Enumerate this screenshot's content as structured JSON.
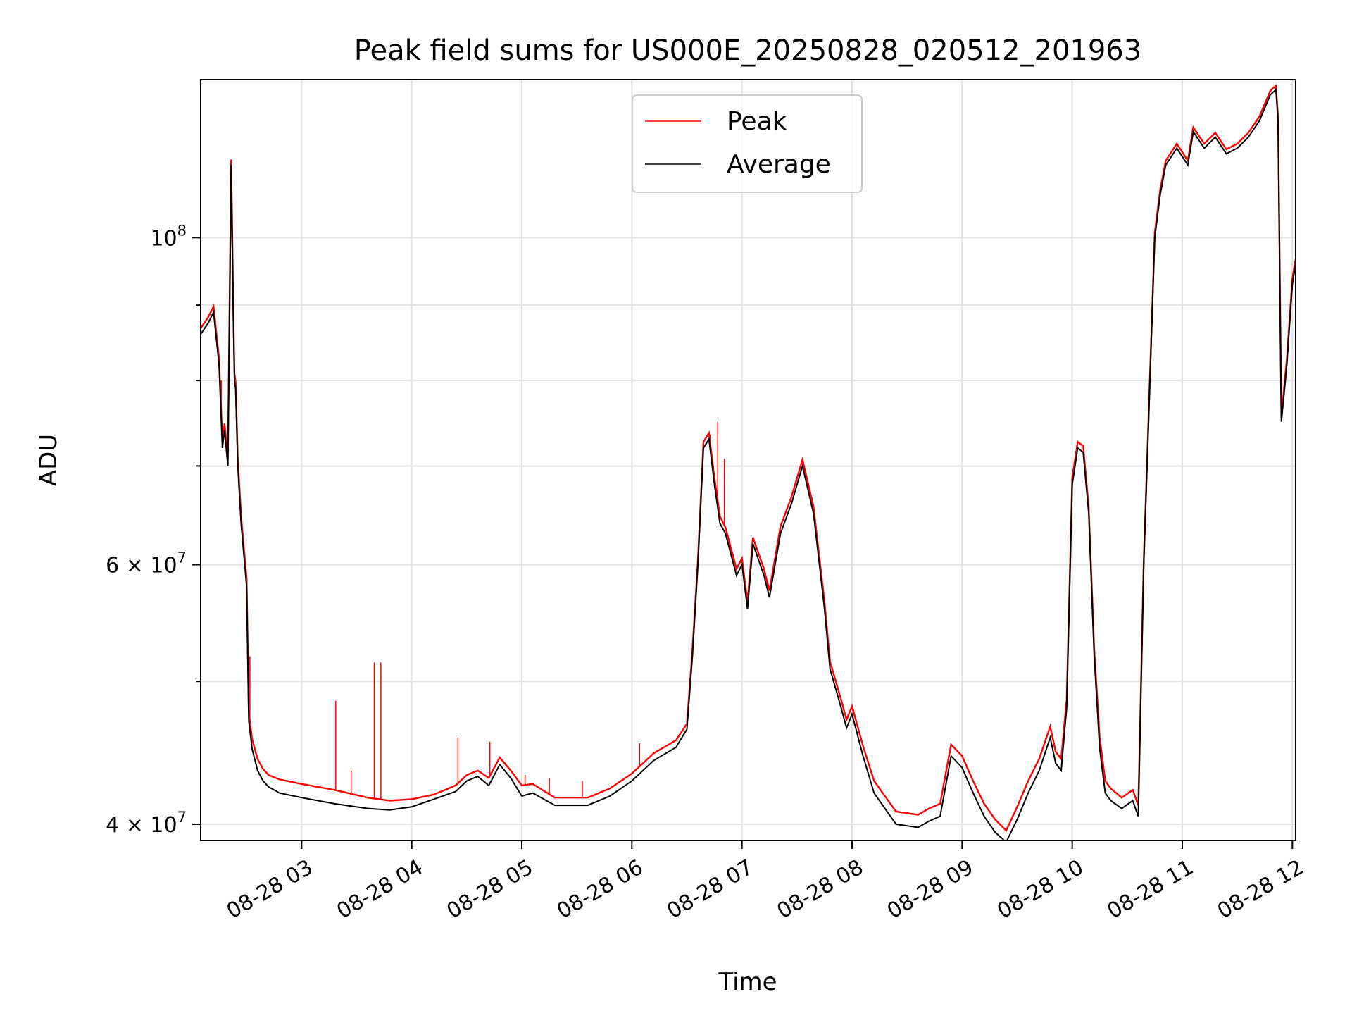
{
  "chart_data": {
    "type": "line",
    "title": "Peak field sums for US000E_20250828_020512_201963",
    "xlabel": "Time",
    "ylabel": "ADU",
    "yscale": "log",
    "ylim": [
      39000000,
      128000000
    ],
    "xlim": [
      2.083,
      12.03
    ],
    "x_ticks": [
      {
        "value": 3,
        "label": "08-28 03"
      },
      {
        "value": 4,
        "label": "08-28 04"
      },
      {
        "value": 5,
        "label": "08-28 05"
      },
      {
        "value": 6,
        "label": "08-28 06"
      },
      {
        "value": 7,
        "label": "08-28 07"
      },
      {
        "value": 8,
        "label": "08-28 08"
      },
      {
        "value": 9,
        "label": "08-28 09"
      },
      {
        "value": 10,
        "label": "08-28 10"
      },
      {
        "value": 11,
        "label": "08-28 11"
      },
      {
        "value": 12,
        "label": "08-28 12"
      }
    ],
    "y_major_ticks": [
      {
        "value": 40000000,
        "base": "4 × 10",
        "exp": "7"
      },
      {
        "value": 60000000,
        "base": "6 × 10",
        "exp": "7"
      },
      {
        "value": 100000000,
        "base": "10",
        "exp": "8"
      }
    ],
    "y_minor_ticks": [
      50000000,
      70000000,
      80000000,
      90000000
    ],
    "grid": true,
    "legend_position": "top-center",
    "series": [
      {
        "name": "Average",
        "color": "#000000",
        "x": [
          2.083,
          2.15,
          2.2,
          2.25,
          2.28,
          2.3,
          2.33,
          2.36,
          2.38,
          2.39,
          2.4,
          2.42,
          2.45,
          2.5,
          2.52,
          2.55,
          2.6,
          2.65,
          2.7,
          2.8,
          3.0,
          3.3,
          3.6,
          3.8,
          4.0,
          4.2,
          4.4,
          4.5,
          4.6,
          4.7,
          4.8,
          4.9,
          5.0,
          5.1,
          5.3,
          5.6,
          5.8,
          6.0,
          6.2,
          6.4,
          6.5,
          6.55,
          6.6,
          6.65,
          6.7,
          6.75,
          6.8,
          6.85,
          6.95,
          7.0,
          7.05,
          7.1,
          7.2,
          7.25,
          7.35,
          7.45,
          7.55,
          7.65,
          7.75,
          7.8,
          7.9,
          7.95,
          8.0,
          8.1,
          8.2,
          8.4,
          8.6,
          8.7,
          8.8,
          8.9,
          9.0,
          9.1,
          9.2,
          9.3,
          9.4,
          9.5,
          9.6,
          9.7,
          9.8,
          9.85,
          9.9,
          9.95,
          10.0,
          10.05,
          10.1,
          10.15,
          10.2,
          10.25,
          10.3,
          10.35,
          10.45,
          10.55,
          10.6,
          10.65,
          10.75,
          10.8,
          10.85,
          10.95,
          11.05,
          11.1,
          11.2,
          11.3,
          11.4,
          11.5,
          11.6,
          11.7,
          11.8,
          11.85,
          11.87,
          11.9,
          11.95,
          12.0,
          12.03
        ],
        "values": [
          86000000,
          87500000,
          89000000,
          82000000,
          72000000,
          74000000,
          70000000,
          112000000,
          88000000,
          80000000,
          79000000,
          70000000,
          64000000,
          58000000,
          47000000,
          45000000,
          43500000,
          42800000,
          42400000,
          42000000,
          41700000,
          41300000,
          41000000,
          40900000,
          41100000,
          41600000,
          42100000,
          42800000,
          43100000,
          42500000,
          43900000,
          43000000,
          41800000,
          42000000,
          41200000,
          41200000,
          41800000,
          42800000,
          44200000,
          45100000,
          46400000,
          52000000,
          60000000,
          72000000,
          73000000,
          68000000,
          64000000,
          63000000,
          59000000,
          60000000,
          56000000,
          62000000,
          59000000,
          57000000,
          63000000,
          66000000,
          70000000,
          65000000,
          56000000,
          51000000,
          48000000,
          46500000,
          47500000,
          44500000,
          42000000,
          40000000,
          39800000,
          40200000,
          40500000,
          44500000,
          43700000,
          42000000,
          40500000,
          39500000,
          38900000,
          40300000,
          42000000,
          43500000,
          45800000,
          44000000,
          43500000,
          48000000,
          68000000,
          72000000,
          71500000,
          65000000,
          52000000,
          45000000,
          42000000,
          41500000,
          41000000,
          41500000,
          40500000,
          60000000,
          100000000,
          107000000,
          112000000,
          115000000,
          112000000,
          118000000,
          115000000,
          117000000,
          114000000,
          115000000,
          117000000,
          120000000,
          125000000,
          126000000,
          120000000,
          75000000,
          82000000,
          93000000,
          96000000
        ]
      },
      {
        "name": "Peak",
        "color": "#ff0000",
        "x": [
          2.083,
          2.15,
          2.2,
          2.25,
          2.28,
          2.3,
          2.33,
          2.36,
          2.38,
          2.39,
          2.4,
          2.42,
          2.45,
          2.5,
          2.52,
          2.55,
          2.6,
          2.65,
          2.7,
          2.8,
          3.0,
          3.3,
          3.6,
          3.8,
          4.0,
          4.2,
          4.4,
          4.5,
          4.6,
          4.7,
          4.8,
          4.9,
          5.0,
          5.1,
          5.3,
          5.6,
          5.8,
          6.0,
          6.2,
          6.4,
          6.5,
          6.55,
          6.6,
          6.65,
          6.7,
          6.75,
          6.8,
          6.85,
          6.95,
          7.0,
          7.05,
          7.1,
          7.2,
          7.25,
          7.35,
          7.45,
          7.55,
          7.65,
          7.75,
          7.8,
          7.9,
          7.95,
          8.0,
          8.1,
          8.2,
          8.4,
          8.6,
          8.7,
          8.8,
          8.9,
          9.0,
          9.1,
          9.2,
          9.3,
          9.4,
          9.5,
          9.6,
          9.7,
          9.8,
          9.85,
          9.9,
          9.95,
          10.0,
          10.05,
          10.1,
          10.15,
          10.2,
          10.25,
          10.3,
          10.35,
          10.45,
          10.55,
          10.6,
          10.65,
          10.75,
          10.8,
          10.85,
          10.95,
          11.05,
          11.1,
          11.2,
          11.3,
          11.4,
          11.5,
          11.6,
          11.7,
          11.8,
          11.85,
          11.87,
          11.9,
          11.95,
          12.0,
          12.03
        ],
        "values": [
          86800000,
          88300000,
          89800000,
          82800000,
          72800000,
          74800000,
          70800000,
          113000000,
          89000000,
          80800000,
          79800000,
          70800000,
          64700000,
          58700000,
          47600000,
          45700000,
          44300000,
          43600000,
          43200000,
          42900000,
          42600000,
          42200000,
          41700000,
          41500000,
          41600000,
          41900000,
          42500000,
          43200000,
          43500000,
          43000000,
          44400000,
          43500000,
          42500000,
          42600000,
          41700000,
          41700000,
          42300000,
          43300000,
          44700000,
          45600000,
          46800000,
          52500000,
          60500000,
          72700000,
          73700000,
          68700000,
          64700000,
          63600000,
          59600000,
          60600000,
          56600000,
          62600000,
          59600000,
          57600000,
          63700000,
          66700000,
          70700000,
          65700000,
          56600000,
          51600000,
          48600000,
          47100000,
          48100000,
          45200000,
          42800000,
          40800000,
          40600000,
          41000000,
          41300000,
          45300000,
          44500000,
          42800000,
          41300000,
          40300000,
          39600000,
          41100000,
          42800000,
          44300000,
          46600000,
          44800000,
          44300000,
          48600000,
          68700000,
          72700000,
          72200000,
          65600000,
          52600000,
          45800000,
          42800000,
          42300000,
          41700000,
          42200000,
          41200000,
          60600000,
          100800000,
          107800000,
          112800000,
          115800000,
          112800000,
          118800000,
          115800000,
          117800000,
          114800000,
          115800000,
          117800000,
          120800000,
          125800000,
          126800000,
          120800000,
          75600000,
          82800000,
          93800000,
          96800000
        ]
      }
    ],
    "peak_spikes": [
      {
        "x": 2.27,
        "value": 80000000
      },
      {
        "x": 2.53,
        "value": 52000000
      },
      {
        "x": 3.31,
        "value": 48500000
      },
      {
        "x": 3.45,
        "value": 43500000
      },
      {
        "x": 3.66,
        "value": 51500000
      },
      {
        "x": 3.72,
        "value": 51500000
      },
      {
        "x": 4.42,
        "value": 45800000
      },
      {
        "x": 4.71,
        "value": 45500000
      },
      {
        "x": 5.03,
        "value": 43200000
      },
      {
        "x": 5.25,
        "value": 43000000
      },
      {
        "x": 5.55,
        "value": 42800000
      },
      {
        "x": 6.07,
        "value": 45400000
      },
      {
        "x": 6.71,
        "value": 73500000
      },
      {
        "x": 6.78,
        "value": 75000000
      },
      {
        "x": 6.84,
        "value": 70800000
      },
      {
        "x": 7.5,
        "value": 68500000
      }
    ]
  }
}
